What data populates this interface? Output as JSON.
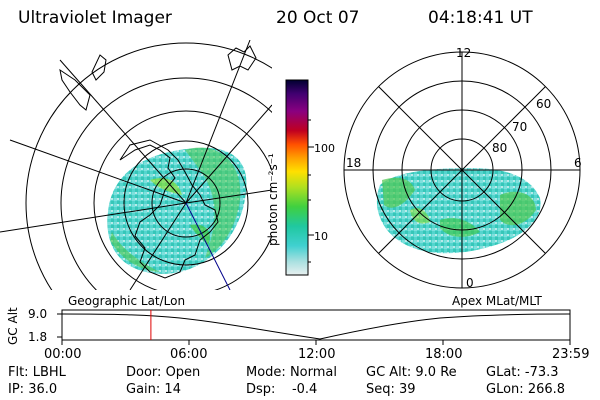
{
  "header": {
    "title": "Ultraviolet Imager",
    "date": "20 Oct 07",
    "time": "04:18:41 UT"
  },
  "colorbar": {
    "label": "photon cm⁻²s⁻¹",
    "ticks": [
      "100",
      "10"
    ],
    "colors": [
      "#000030",
      "#300060",
      "#5a0090",
      "#8a0080",
      "#b00040",
      "#d40010",
      "#ff4400",
      "#ff9000",
      "#ffd000",
      "#e8f020",
      "#a0e020",
      "#40d040",
      "#20c890",
      "#30d0c8",
      "#a0e0e0",
      "#e0f0f0"
    ]
  },
  "right_map": {
    "lat_labels": [
      "60",
      "70",
      "80"
    ],
    "mlt_labels": [
      "12",
      "18",
      "6",
      "0"
    ]
  },
  "map_captions": {
    "left": "Geographic Lat/Lon",
    "right": "Apex MLat/MLT"
  },
  "altitude_plot": {
    "ylabel": "GC Alt",
    "yticks": [
      "9.0",
      "1.8"
    ],
    "xticks": [
      "00:00",
      "06:00",
      "12:00",
      "18:00",
      "23:59"
    ],
    "current_time_fraction": 0.175
  },
  "info": {
    "row1": [
      {
        "label": "Flt:",
        "value": "LBHL"
      },
      {
        "label": "Door:",
        "value": "Open"
      },
      {
        "label": "Mode:",
        "value": "Normal"
      },
      {
        "label": "GC Alt:",
        "value": "9.0 Re"
      },
      {
        "label": "GLat:",
        "value": "-73.3"
      }
    ],
    "row2": [
      {
        "label": "IP:",
        "value": "36.0"
      },
      {
        "label": "Gain:",
        "value": "14"
      },
      {
        "label": "Dsp:",
        "value": "-0.4"
      },
      {
        "label": "Seq:",
        "value": "39"
      },
      {
        "label": "GLon:",
        "value": "266.8"
      }
    ]
  }
}
